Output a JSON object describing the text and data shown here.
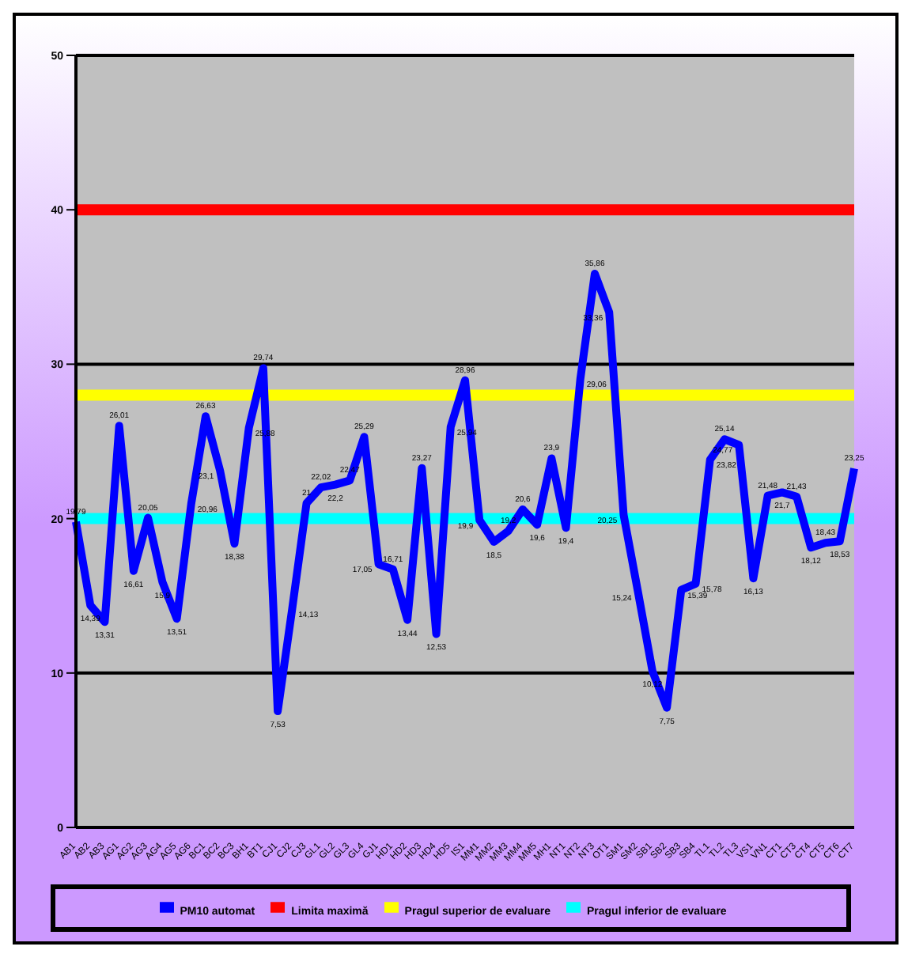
{
  "chart_data": {
    "type": "line",
    "categories": [
      "AB1",
      "AB2",
      "AB3",
      "AG1",
      "AG2",
      "AG3",
      "AG4",
      "AG5",
      "AG6",
      "BC1",
      "BC2",
      "BC3",
      "BH1",
      "BT1",
      "CJ1",
      "CJ2",
      "CJ3",
      "GL1",
      "GL2",
      "GL3",
      "GL4",
      "GJ1",
      "HD1",
      "HD2",
      "HD3",
      "HD4",
      "HD5",
      "IS1",
      "MM1",
      "MM2",
      "MM3",
      "MM4",
      "MM5",
      "MH1",
      "NT1",
      "NT2",
      "NT3",
      "OT1",
      "SM1",
      "SM2",
      "SB1",
      "SB2",
      "SB3",
      "SB4",
      "TL1",
      "TL2",
      "TL3",
      "VS1",
      "VN1",
      "CT1",
      "CT3",
      "CT4",
      "CT5",
      "CT6",
      "CT7"
    ],
    "series": [
      {
        "name": "PM10 automat",
        "color": "#0000ff",
        "values": [
          19.79,
          14.39,
          13.31,
          26.01,
          16.61,
          20.05,
          15.9,
          13.51,
          20.96,
          26.63,
          23.1,
          18.38,
          25.88,
          29.74,
          7.53,
          14.13,
          21,
          22.02,
          22.2,
          22.47,
          25.29,
          17.05,
          16.71,
          13.44,
          23.27,
          12.53,
          25.94,
          28.96,
          19.9,
          18.5,
          19.2,
          20.6,
          19.6,
          23.9,
          19.4,
          29.06,
          35.86,
          33.36,
          20.25,
          15.24,
          10.12,
          7.75,
          15.39,
          15.78,
          23.82,
          25.14,
          24.77,
          16.13,
          21.48,
          21.7,
          21.43,
          18.12,
          18.43,
          18.53,
          23.25
        ],
        "value_labels": [
          "19,79",
          "14,39",
          "13,31",
          "26,01",
          "16,61",
          "20,05",
          "15,9",
          "13,51",
          "20,96",
          "26,63",
          "23,1",
          "18,38",
          "25,88",
          "29,74",
          "7,53",
          "14,13",
          "21",
          "22,02",
          "22,2",
          "22,47",
          "25,29",
          "17,05",
          "16,71",
          "13,44",
          "23,27",
          "12,53",
          "25,94",
          "28,96",
          "19,9",
          "18,5",
          "19,2",
          "20,6",
          "19,6",
          "23,9",
          "19,4",
          "29,06",
          "35,86",
          "33,36",
          "20,25",
          "15,24",
          "10,12",
          "7,75",
          "15,39",
          "15,78",
          "23,82",
          "25,14",
          "24,77",
          "16,13",
          "21,48",
          "21,7",
          "21,43",
          "18,12",
          "18,43",
          "18,53",
          "23,25"
        ]
      }
    ],
    "ref_lines": [
      {
        "axis": "y",
        "value": 40,
        "label": "Limita maximă",
        "color": "#ff0000"
      },
      {
        "axis": "y",
        "value": 28,
        "label": "Pragul superior de evaluare",
        "color": "#ffff00"
      },
      {
        "axis": "y",
        "value": 20,
        "label": "Pragul inferior de evaluare",
        "color": "#00ffff"
      }
    ],
    "ylim": [
      0,
      50
    ],
    "yticks": [
      0,
      10,
      20,
      30,
      40,
      50
    ],
    "grid": "y",
    "legend": "bottom",
    "marker": "none",
    "line_style": "solid"
  }
}
